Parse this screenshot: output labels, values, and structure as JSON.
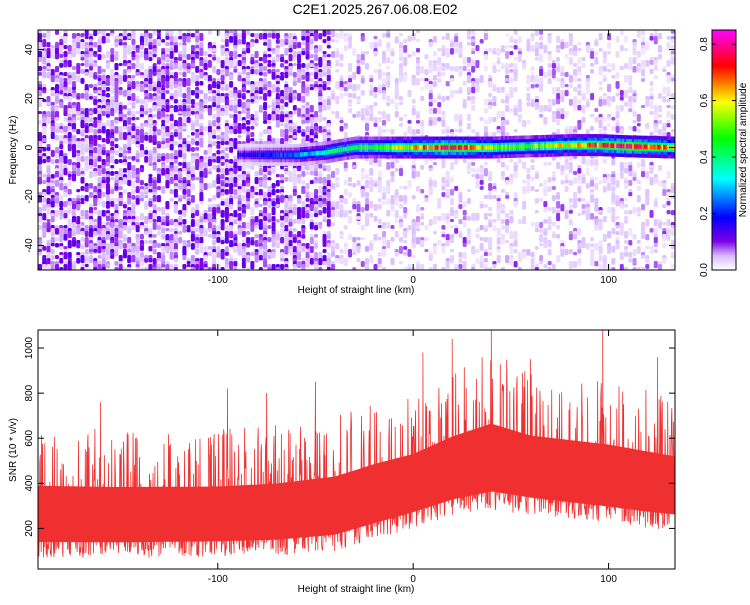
{
  "title": "C2E1.2025.267.06.08.E02",
  "chart_data": [
    {
      "type": "heatmap",
      "xlabel": "Height of straight line (km)",
      "ylabel": "Frequency (Hz)",
      "xlim": [
        -192,
        134
      ],
      "ylim": [
        -50,
        48
      ],
      "xticks": [
        -100,
        0,
        100
      ],
      "yticks": [
        -40,
        -20,
        0,
        20,
        40
      ],
      "grid": false,
      "colorbar": {
        "label": "Normalized spectral amplitude",
        "range": [
          0.0,
          0.85
        ],
        "ticks": [
          0.0,
          0.2,
          0.4,
          0.6,
          0.8
        ],
        "colormap": [
          "#ffffff",
          "#7a00e6",
          "#0000ff",
          "#00ffff",
          "#00ff00",
          "#ffff00",
          "#ff0000",
          "#ff00ff"
        ]
      },
      "signal_trace": {
        "description_x": [
          -90,
          -60,
          -45,
          -38,
          -30,
          -20,
          0,
          20,
          40,
          60,
          80,
          95,
          110,
          134
        ],
        "frequency_hz": [
          -3,
          -3,
          -2,
          -1,
          0,
          0,
          0,
          0,
          0,
          0.5,
          1,
          1,
          0.5,
          0
        ],
        "amplitude": [
          0.15,
          0.25,
          0.35,
          0.4,
          0.45,
          0.5,
          0.6,
          0.8,
          0.55,
          0.5,
          0.6,
          0.7,
          0.75,
          0.6
        ]
      },
      "noise_amplitude": {
        "below_x": -42,
        "level_left": 0.1,
        "level_right": 0.03
      }
    },
    {
      "type": "area",
      "xlabel": "Height of straight line (km)",
      "ylabel": "SNR (10 * v/v)",
      "xlim": [
        -192,
        134
      ],
      "ylim": [
        20,
        1080
      ],
      "xticks": [
        -100,
        0,
        100
      ],
      "yticks": [
        200,
        400,
        600,
        800,
        1000
      ],
      "color": "#f03030",
      "envelope": {
        "x": [
          -192,
          -150,
          -100,
          -70,
          -40,
          -20,
          0,
          20,
          40,
          60,
          80,
          100,
          120,
          134
        ],
        "lower": [
          70,
          70,
          75,
          80,
          100,
          150,
          200,
          250,
          280,
          260,
          240,
          220,
          200,
          190
        ],
        "upper": [
          650,
          640,
          640,
          660,
          700,
          760,
          800,
          900,
          980,
          900,
          880,
          860,
          820,
          790
        ],
        "spikes": [
          [
            -160,
            760
          ],
          [
            -95,
            820
          ],
          [
            -75,
            800
          ],
          [
            -50,
            850
          ],
          [
            5,
            980
          ],
          [
            20,
            1040
          ],
          [
            40,
            1080
          ],
          [
            60,
            950
          ],
          [
            97,
            1080
          ],
          [
            125,
            960
          ]
        ]
      }
    }
  ]
}
